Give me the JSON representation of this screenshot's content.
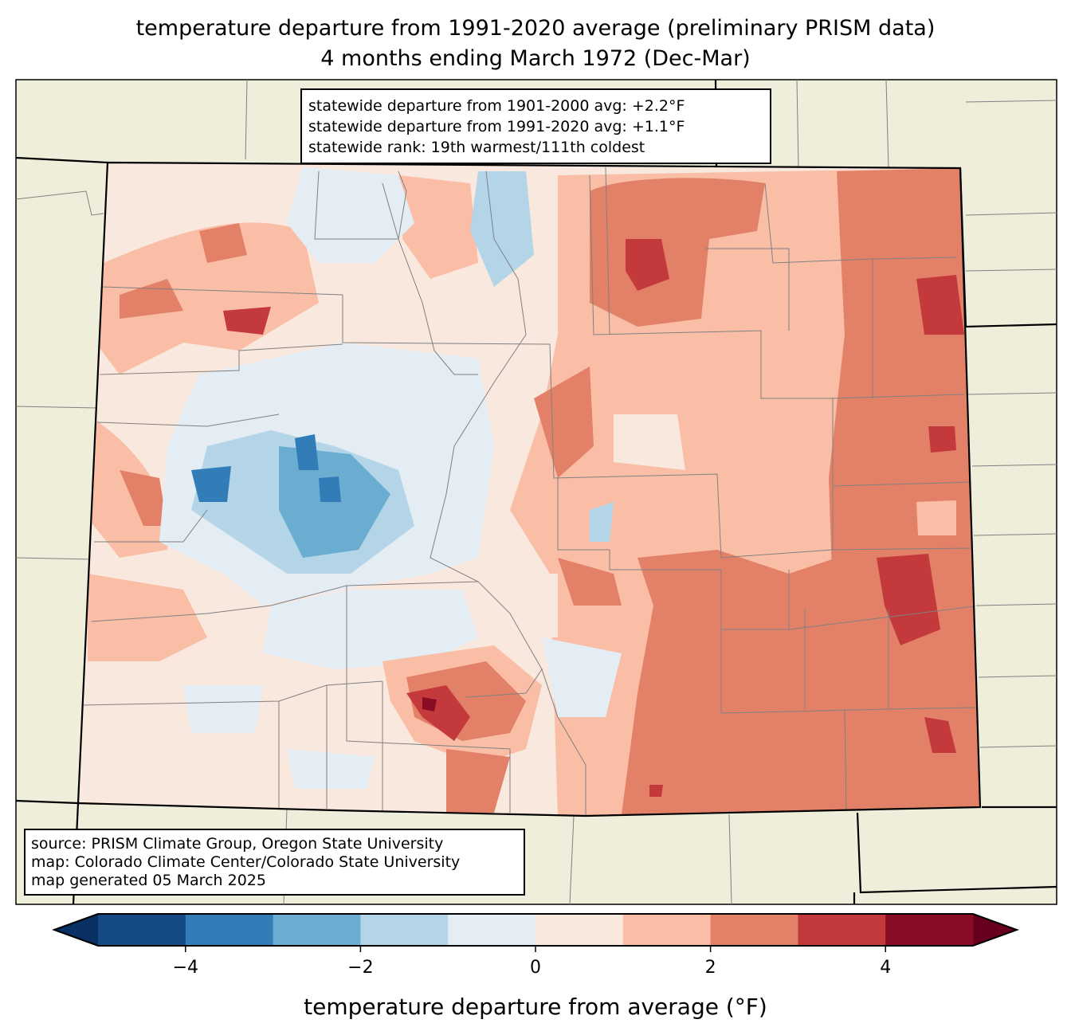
{
  "title": {
    "line1": "temperature departure from 1991-2020 average (preliminary PRISM data)",
    "line2": "4 months ending March 1972 (Dec-Mar)"
  },
  "stats_box": {
    "line1": "statewide departure from 1901-2000 avg: +2.2°F",
    "line2": "statewide departure from 1991-2020 avg: +1.1°F",
    "line3": "statewide rank: 19th warmest/111th coldest"
  },
  "source_box": {
    "line1": "source: PRISM Climate Group, Oregon State University",
    "line2": "map: Colorado Climate Center/Colorado State University",
    "line3": "map generated 05 March 2025"
  },
  "colorbar": {
    "label": "temperature departure from average (°F)",
    "bounds": [
      -5,
      -4,
      -3,
      -2,
      -1,
      0,
      1,
      2,
      3,
      4,
      5
    ],
    "colors": [
      "#154a84",
      "#327db8",
      "#6badd1",
      "#b3d5e7",
      "#e5edf4",
      "#f9e8de",
      "#f9bea5",
      "#e38168",
      "#c43a3c",
      "#890c26"
    ],
    "under_color": "#093063",
    "over_color": "#67001f",
    "ticks": [
      {
        "value": -4,
        "label": "−4"
      },
      {
        "value": -2,
        "label": "−2"
      },
      {
        "value": 0,
        "label": "0"
      },
      {
        "value": 2,
        "label": "2"
      },
      {
        "value": 4,
        "label": "4"
      }
    ]
  },
  "map_colors": {
    "land": "#efeedb",
    "county_line": "#808080"
  }
}
